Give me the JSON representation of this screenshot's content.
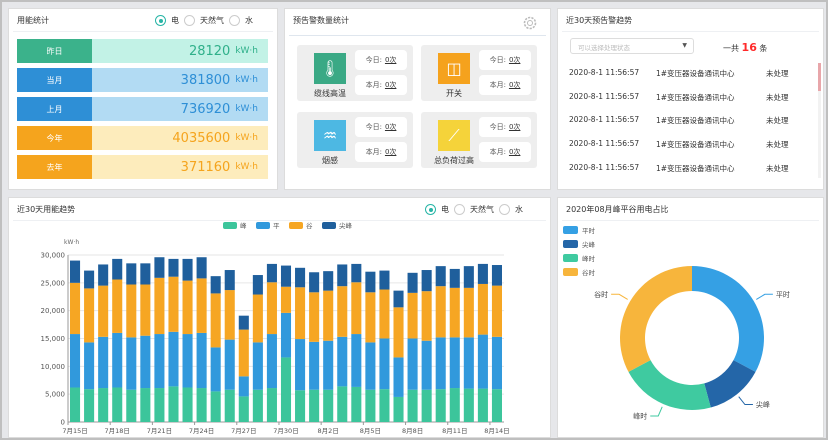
{
  "energy_stats": {
    "title": "用能统计",
    "radios": [
      "电",
      "天然气",
      "水"
    ],
    "selected": "电",
    "unit": "kW·h",
    "rows": [
      {
        "label": "昨日",
        "value": "28120",
        "color": "#3bb28b",
        "bg": "#c2f2e6",
        "text": "#2fb08a"
      },
      {
        "label": "当月",
        "value": "381800",
        "color": "#2e8fd6",
        "bg": "#b2dbf3",
        "text": "#2e8fd6"
      },
      {
        "label": "上月",
        "value": "736920",
        "color": "#2e8fd6",
        "bg": "#b2dbf3",
        "text": "#2e8fd6"
      },
      {
        "label": "今年",
        "value": "4035600",
        "color": "#f5a41d",
        "bg": "#fdecbc",
        "text": "#f5a41d"
      },
      {
        "label": "去年",
        "value": "371160",
        "color": "#f5a41d",
        "bg": "#fdecbc",
        "text": "#f5a41d"
      }
    ]
  },
  "alarm_stats": {
    "title": "预告警数量统计",
    "settings_icon": "gear-icon",
    "cards": [
      {
        "name": "缆线高温",
        "icon": "thermometer-icon",
        "color": "#3aa985",
        "today_label": "今日:",
        "today": "0次",
        "month_label": "本月:",
        "month": "0次"
      },
      {
        "name": "开关",
        "icon": "switch-icon",
        "color": "#f5a21d",
        "today_label": "今日:",
        "today": "0次",
        "month_label": "本月:",
        "month": "0次"
      },
      {
        "name": "烟感",
        "icon": "smoke-detector-icon",
        "color": "#4db8e3",
        "today_label": "今日:",
        "today": "0次",
        "month_label": "本月:",
        "month": "0次"
      },
      {
        "name": "总负荷过高",
        "icon": "line-chart-icon",
        "color": "#f5d33a",
        "today_label": "今日:",
        "today": "0次",
        "month_label": "本月:",
        "month": "0次"
      }
    ]
  },
  "alarm_trend": {
    "title": "近30天预告警趋势",
    "select_placeholder": "可以选择处理状态",
    "total_prefix": "一共",
    "total": "16",
    "total_suffix": "条",
    "rows": [
      {
        "time": "2020-8-1 11:56:57",
        "device": "1#变压器设备通讯中心",
        "status": "未处理"
      },
      {
        "time": "2020-8-1 11:56:57",
        "device": "1#变压器设备通讯中心",
        "status": "未处理"
      },
      {
        "time": "2020-8-1 11:56:57",
        "device": "1#变压器设备通讯中心",
        "status": "未处理"
      },
      {
        "time": "2020-8-1 11:56:57",
        "device": "1#变压器设备通讯中心",
        "status": "未处理"
      },
      {
        "time": "2020-8-1 11:56:57",
        "device": "1#变压器设备通讯中心",
        "status": "未处理"
      }
    ]
  },
  "trend_panel": {
    "title": "近30天用能趋势",
    "radios": [
      "电",
      "天然气",
      "水"
    ],
    "selected": "电"
  },
  "pie_panel": {
    "title": "2020年08月峰平谷用电占比"
  },
  "chart_data": [
    {
      "type": "bar",
      "stacked": true,
      "ylabel": "kW·h",
      "ylim": [
        0,
        30000
      ],
      "yticks": [
        "0",
        "5,000",
        "10,000",
        "15,000",
        "20,000",
        "25,000",
        "30,000"
      ],
      "grid": true,
      "legend": "top-center",
      "categories": [
        "7月15日",
        "7月16日",
        "7月17日",
        "7月18日",
        "7月19日",
        "7月20日",
        "7月21日",
        "7月22日",
        "7月23日",
        "7月24日",
        "7月25日",
        "7月26日",
        "7月27日",
        "7月28日",
        "7月29日",
        "7月30日",
        "7月31日",
        "8月1日",
        "8月2日",
        "8月3日",
        "8月4日",
        "8月5日",
        "8月6日",
        "8月7日",
        "8月8日",
        "8月9日",
        "8月10日",
        "8月11日",
        "8月12日",
        "8月13日",
        "8月14日"
      ],
      "xtick_labels": [
        "7月15日",
        "7月18日",
        "7月21日",
        "7月24日",
        "7月27日",
        "7月30日",
        "8月2日",
        "8月5日",
        "8月8日",
        "8月11日",
        "8月14日"
      ],
      "series": [
        {
          "name": "峰",
          "color": "#3cc59b",
          "values": [
            6200,
            5900,
            6100,
            6200,
            5800,
            6100,
            6100,
            6400,
            6200,
            6100,
            5500,
            5800,
            4600,
            5800,
            6100,
            11600,
            5700,
            5800,
            5800,
            6400,
            6300,
            5800,
            5900,
            4500,
            5800,
            5800,
            5900,
            6100,
            6000,
            6000,
            5900
          ]
        },
        {
          "name": "平",
          "color": "#3199dc",
          "values": [
            9600,
            8400,
            9200,
            9800,
            9400,
            9400,
            9700,
            9800,
            9600,
            9900,
            7900,
            9000,
            3600,
            8500,
            9700,
            8000,
            9200,
            8600,
            8800,
            8900,
            9500,
            8500,
            9100,
            7100,
            9200,
            8800,
            9300,
            9100,
            9200,
            9700,
            9400
          ]
        },
        {
          "name": "谷",
          "color": "#f6a623",
          "values": [
            9200,
            9700,
            9200,
            9600,
            9500,
            9200,
            10100,
            9900,
            9600,
            9800,
            9700,
            8900,
            8400,
            8600,
            9300,
            4700,
            9300,
            8900,
            9000,
            9100,
            9300,
            9000,
            8800,
            9000,
            8200,
            8900,
            9200,
            8900,
            8900,
            9100,
            9200
          ]
        },
        {
          "name": "尖峰",
          "color": "#1f5f9c",
          "values": [
            4000,
            3200,
            3800,
            3700,
            3800,
            3800,
            3700,
            3200,
            3900,
            3800,
            3100,
            3600,
            2500,
            3500,
            3300,
            3800,
            3500,
            3600,
            3500,
            3900,
            3300,
            3700,
            3400,
            3000,
            3600,
            3800,
            3600,
            3400,
            3900,
            3600,
            3700
          ]
        }
      ]
    },
    {
      "type": "pie",
      "donut": true,
      "legend": "top-left",
      "slices": [
        {
          "name": "平时",
          "value": 32.8,
          "color": "#35a0e4"
        },
        {
          "name": "尖峰",
          "value": 13.0,
          "color": "#2466a8"
        },
        {
          "name": "峰时",
          "value": 21.4,
          "color": "#3fcaa0"
        },
        {
          "name": "谷时",
          "value": 32.8,
          "color": "#f7b53c"
        }
      ]
    }
  ]
}
